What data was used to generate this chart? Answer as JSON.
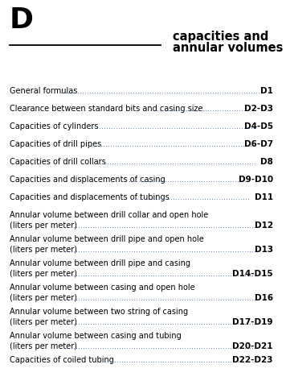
{
  "letter": "D",
  "title_line1": "capacities and",
  "title_line2": "annular volumes",
  "bg_color": "#ffffff",
  "letter_fontsize": 26,
  "title_fontsize": 10.5,
  "text_fontsize": 7.0,
  "page_fontsize": 7.5,
  "entries": [
    {
      "line1": "General formulas",
      "line2": null,
      "page": "D1"
    },
    {
      "line1": "Clearance between standard bits and casing size",
      "line2": null,
      "page": "D2-D3"
    },
    {
      "line1": "Capacities of cylinders",
      "line2": null,
      "page": "D4-D5"
    },
    {
      "line1": "Capacities of drill pipes",
      "line2": null,
      "page": "D6-D7"
    },
    {
      "line1": "Capacities of drill collars",
      "line2": null,
      "page": "D8"
    },
    {
      "line1": "Capacities and displacements of casing",
      "line2": null,
      "page": "D9-D10"
    },
    {
      "line1": "Capacities and displacements of tubings",
      "line2": null,
      "page": "D11"
    },
    {
      "line1": "Annular volume between drill collar and open hole",
      "line2": "(liters per meter)",
      "page": "D12"
    },
    {
      "line1": "Annular volume between drill pipe and open hole",
      "line2": "(liters per meter)",
      "page": "D13"
    },
    {
      "line1": "Annular volume between drill pipe and casing",
      "line2": "(liters per meter)",
      "page": "D14-D15"
    },
    {
      "line1": "Annular volume between casing and open hole",
      "line2": "(liters per meter)",
      "page": "D16"
    },
    {
      "line1": "Annular volume between two string of casing",
      "line2": "(liters per meter)",
      "page": "D17-D19"
    },
    {
      "line1": "Annular volume between casing and tubing",
      "line2": "(liters per meter)",
      "page": "D20-D21"
    },
    {
      "line1": "Capacities of coiled tubing",
      "line2": null,
      "page": "D22-D23"
    }
  ],
  "dots_color": "#4472c4",
  "text_color": "#000000",
  "page_color": "#000000"
}
